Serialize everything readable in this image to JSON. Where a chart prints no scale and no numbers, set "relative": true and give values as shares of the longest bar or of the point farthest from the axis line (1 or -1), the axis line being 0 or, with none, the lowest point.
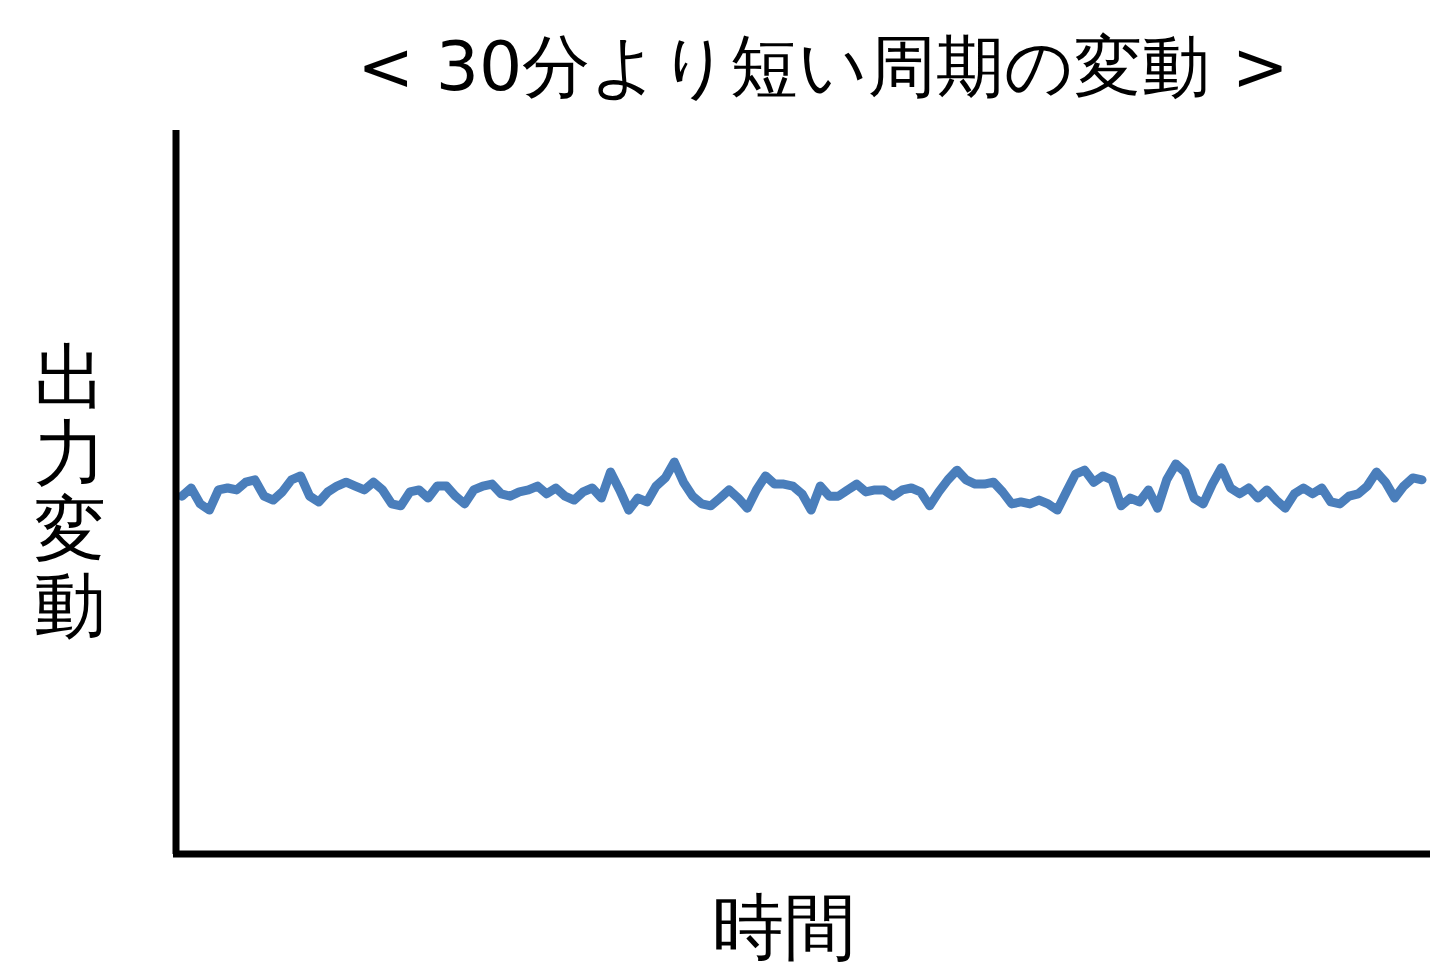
{
  "chart_data": {
    "type": "line",
    "relative": true,
    "title": "< 30分より短い周期の変動 >",
    "xlabel": "時間",
    "ylabel": "出力変動",
    "marker": "none",
    "line_style": "solid",
    "categories": [
      null,
      null,
      null,
      null,
      null,
      null,
      null,
      null,
      null,
      null,
      null,
      null,
      null,
      null,
      null,
      null,
      null,
      null,
      null,
      null,
      null,
      null,
      null,
      null,
      null,
      null,
      null,
      null,
      null,
      null,
      null,
      null,
      null,
      null,
      null,
      null,
      null,
      null,
      null,
      null,
      null,
      null,
      null,
      null,
      null,
      null,
      null,
      null,
      null,
      null,
      null,
      null,
      null,
      null,
      null,
      null,
      null,
      null,
      null,
      null,
      null,
      null,
      null,
      null,
      null,
      null,
      null,
      null,
      null,
      null,
      null,
      null,
      null,
      null,
      null,
      null,
      null,
      null,
      null,
      null,
      null,
      null,
      null,
      null,
      null,
      null,
      null,
      null,
      null,
      null,
      null,
      null,
      null,
      null,
      null,
      null,
      null,
      null,
      null,
      null,
      null,
      null,
      null,
      null,
      null,
      null,
      null,
      null,
      null,
      null,
      null,
      null,
      null,
      null,
      null,
      null,
      null,
      null,
      null,
      null,
      null,
      null,
      null,
      null,
      null,
      null,
      null,
      null,
      null,
      null,
      null,
      null,
      null,
      null,
      null,
      null,
      null
    ],
    "series": [
      {
        "color": "#4a7ebb",
        "values": [
          0.912,
          0.933,
          0.892,
          0.876,
          0.928,
          0.933,
          0.928,
          0.948,
          0.954,
          0.912,
          0.902,
          0.923,
          0.954,
          0.964,
          0.912,
          0.897,
          0.923,
          0.938,
          0.948,
          0.938,
          0.928,
          0.948,
          0.928,
          0.892,
          0.887,
          0.923,
          0.928,
          0.907,
          0.938,
          0.938,
          0.912,
          0.892,
          0.928,
          0.938,
          0.943,
          0.918,
          0.912,
          0.923,
          0.928,
          0.938,
          0.918,
          0.933,
          0.912,
          0.902,
          0.923,
          0.933,
          0.907,
          0.974,
          0.928,
          0.876,
          0.907,
          0.897,
          0.938,
          0.959,
          1,
          0.948,
          0.912,
          0.892,
          0.887,
          0.907,
          0.928,
          0.907,
          0.881,
          0.928,
          0.964,
          0.943,
          0.943,
          0.938,
          0.918,
          0.876,
          0.938,
          0.912,
          0.912,
          0.928,
          0.943,
          0.923,
          0.928,
          0.928,
          0.912,
          0.928,
          0.933,
          0.923,
          0.887,
          0.923,
          0.954,
          0.979,
          0.954,
          0.943,
          0.943,
          0.948,
          0.923,
          0.892,
          0.897,
          0.892,
          0.902,
          0.892,
          0.876,
          0.923,
          0.969,
          0.979,
          0.948,
          0.964,
          0.954,
          0.887,
          0.907,
          0.897,
          0.928,
          0.881,
          0.954,
          0.995,
          0.974,
          0.907,
          0.892,
          0.943,
          0.985,
          0.933,
          0.918,
          0.933,
          0.907,
          0.928,
          0.902,
          0.881,
          0.918,
          0.933,
          0.918,
          0.933,
          0.897,
          0.892,
          0.912,
          0.918,
          0.938,
          0.974,
          0.948,
          0.907,
          0.938,
          0.959,
          0.954
        ]
      }
    ]
  }
}
